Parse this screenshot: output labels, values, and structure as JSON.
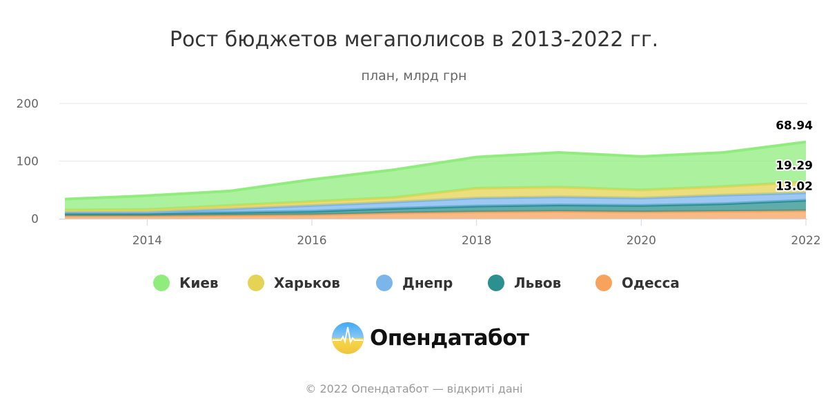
{
  "chart_data": {
    "type": "area",
    "stacked": true,
    "title": "Рост бюджетов мегаполисов в 2013-2022 гг.",
    "subtitle": "план, млрд грн",
    "x": [
      2013,
      2014,
      2015,
      2016,
      2017,
      2018,
      2019,
      2020,
      2021,
      2022
    ],
    "x_ticks": [
      "2014",
      "2016",
      "2018",
      "2020",
      "2022"
    ],
    "y_ticks": [
      "0",
      "100",
      "200"
    ],
    "ylim": [
      0,
      200
    ],
    "grid": true,
    "legend_position": "bottom",
    "series": [
      {
        "name": "Киев",
        "color": "#90ed7d",
        "values": [
          19,
          24,
          25,
          38,
          48,
          54,
          60,
          58,
          59,
          68.94
        ],
        "last_label": "68.94"
      },
      {
        "name": "Харьков",
        "color": "#e4d354",
        "values": [
          3,
          4,
          6,
          7,
          8,
          17,
          17,
          14,
          15,
          19.29
        ],
        "last_label": "19.29"
      },
      {
        "name": "Днепр",
        "color": "#7cb5ec",
        "values": [
          3,
          3,
          6,
          10,
          11,
          14,
          14,
          13,
          15,
          13.02
        ],
        "last_label": "13.02"
      },
      {
        "name": "Львов",
        "color": "#2b908f",
        "values": [
          4,
          4,
          5,
          6,
          8,
          10,
          11,
          11,
          13,
          18
        ]
      },
      {
        "name": "Одесса",
        "color": "#f7a35c",
        "values": [
          5,
          5,
          6,
          7,
          10,
          12,
          13,
          12,
          13,
          14
        ]
      }
    ]
  },
  "logo": {
    "text": "Опендатабот"
  },
  "credits": "© 2022 Опендатабот — відкриті дані"
}
